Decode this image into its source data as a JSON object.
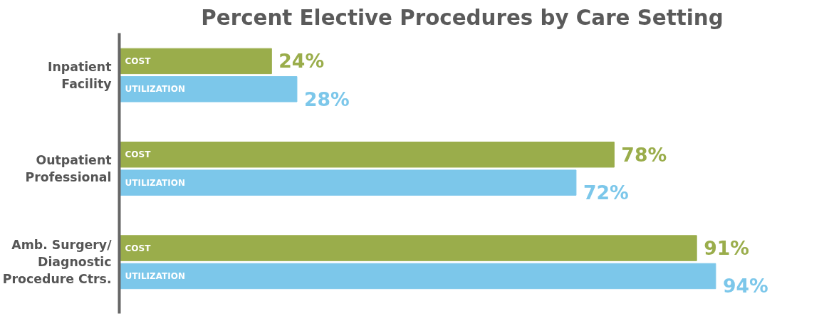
{
  "chart_data": {
    "type": "bar",
    "orientation": "horizontal",
    "title": "Percent Elective Procedures by Care Setting",
    "categories": [
      "Inpatient\nFacility",
      "Outpatient\nProfessional",
      "Amb. Surgery/\nDiagnostic\nProcedure Ctrs."
    ],
    "series": [
      {
        "name": "COST",
        "color": "#9aad4b",
        "values": [
          24,
          78,
          91
        ],
        "value_labels": [
          "24%",
          "78%",
          "91%"
        ]
      },
      {
        "name": "UTILIZATION",
        "color": "#7cc7ea",
        "values": [
          28,
          72,
          94
        ],
        "value_labels": [
          "28%",
          "72%",
          "94%"
        ]
      }
    ],
    "grid": false,
    "tick_labels": "y"
  }
}
